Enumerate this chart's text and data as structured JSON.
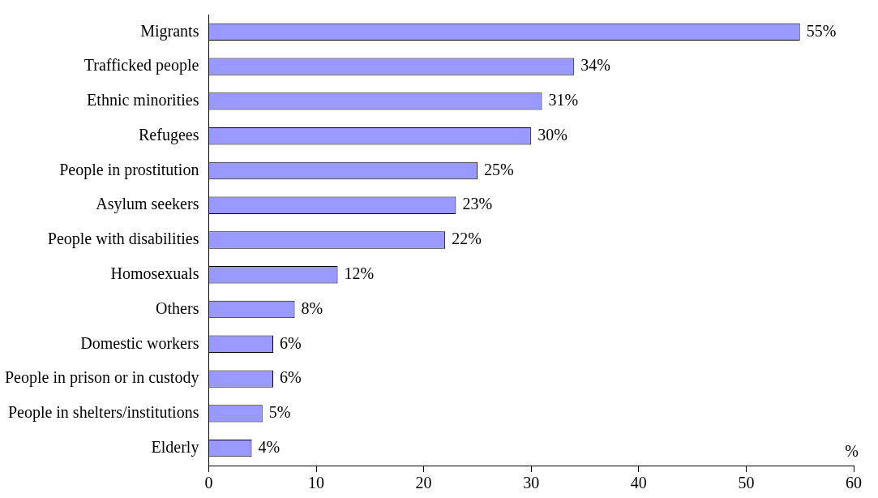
{
  "chart_data": {
    "type": "bar",
    "orientation": "horizontal",
    "xlabel": "%",
    "categories": [
      "Migrants",
      "Trafficked people",
      "Ethnic minorities",
      "Refugees",
      "People in prostitution",
      "Asylum seekers",
      "People with disabilities",
      "Homosexuals",
      "Others",
      "Domestic workers",
      "People in prison or in custody",
      "People in shelters/institutions",
      "Elderly"
    ],
    "values": [
      55,
      34,
      31,
      30,
      25,
      23,
      22,
      12,
      8,
      6,
      6,
      5,
      4
    ],
    "value_labels": [
      "55%",
      "34%",
      "31%",
      "30%",
      "25%",
      "23%",
      "22%",
      "12%",
      "8%",
      "6%",
      "6%",
      "5%",
      "4%"
    ],
    "color": "#9999ff",
    "xlim": [
      0,
      60
    ],
    "xticks": [
      0,
      10,
      20,
      30,
      40,
      50,
      60
    ],
    "grid": false,
    "legend": false
  }
}
